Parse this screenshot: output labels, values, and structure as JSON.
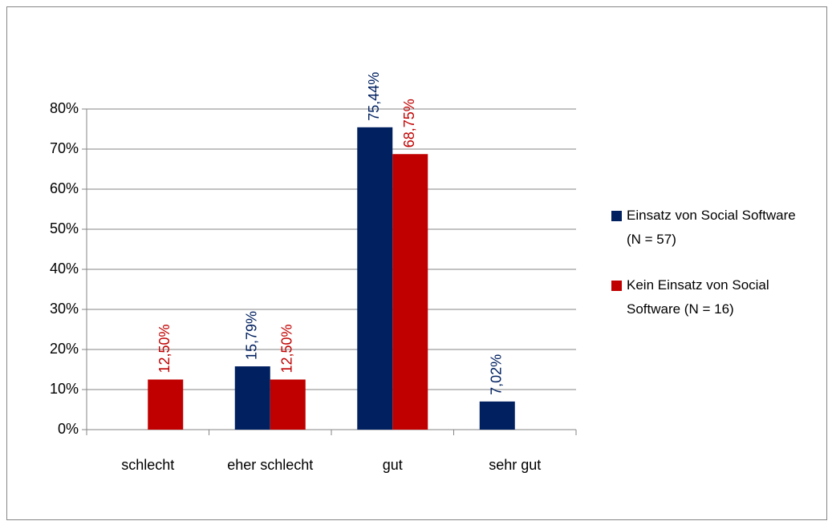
{
  "chart_data": {
    "type": "bar",
    "categories": [
      "schlecht",
      "eher schlecht",
      "gut",
      "sehr gut"
    ],
    "series": [
      {
        "name": "Einsatz von Social Software (N = 57)",
        "color": "#002060",
        "values": [
          null,
          15.79,
          75.44,
          7.02
        ],
        "value_labels": [
          null,
          "15,79%",
          "75,44%",
          "7,02%"
        ]
      },
      {
        "name": "Kein Einsatz von Social Software (N = 16)",
        "color": "#c00000",
        "values": [
          12.5,
          12.5,
          68.75,
          null
        ],
        "value_labels": [
          "12,50%",
          "12,50%",
          "68,75%",
          null
        ]
      }
    ],
    "ylim": [
      0,
      80
    ],
    "yticks": [
      {
        "value": 0,
        "label": "0%"
      },
      {
        "value": 10,
        "label": "10%"
      },
      {
        "value": 20,
        "label": "20%"
      },
      {
        "value": 30,
        "label": "30%"
      },
      {
        "value": 40,
        "label": "40%"
      },
      {
        "value": 50,
        "label": "50%"
      },
      {
        "value": 60,
        "label": "60%"
      },
      {
        "value": 70,
        "label": "70%"
      },
      {
        "value": 80,
        "label": "80%"
      }
    ],
    "grid": true,
    "legend": "right"
  }
}
